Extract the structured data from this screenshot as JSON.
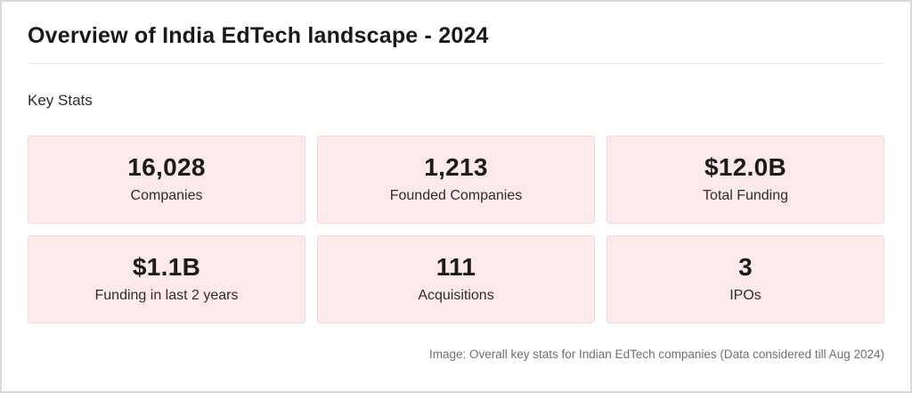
{
  "page": {
    "title": "Overview of India EdTech landscape - 2024",
    "section_label": "Key Stats",
    "caption": "Image: Overall key stats for Indian EdTech companies (Data considered till Aug 2024)"
  },
  "stats": [
    {
      "value": "16,028",
      "label": "Companies"
    },
    {
      "value": "1,213",
      "label": "Founded Companies"
    },
    {
      "value": "$12.0B",
      "label": "Total Funding"
    },
    {
      "value": "$1.1B",
      "label": "Funding in last 2 years"
    },
    {
      "value": "111",
      "label": "Acquisitions"
    },
    {
      "value": "3",
      "label": "IPOs"
    }
  ],
  "colors": {
    "card_background": "#fce9e9",
    "card_border": "#f7d7d7",
    "frame_border": "#d7d7d7",
    "title_text": "#1a1a1a",
    "caption_text": "#6f6f6f",
    "divider": "#e8e8e8"
  },
  "chart_data": {
    "type": "table",
    "title": "Overview of India EdTech landscape - 2024",
    "subtitle": "Key Stats",
    "categories": [
      "Companies",
      "Founded Companies",
      "Total Funding",
      "Funding in last 2 years",
      "Acquisitions",
      "IPOs"
    ],
    "values": [
      16028,
      1213,
      "$12.0B",
      "$1.1B",
      111,
      3
    ],
    "annotations": [
      "Image: Overall key stats for Indian EdTech companies (Data considered till Aug 2024)"
    ],
    "layout": "2 rows x 3 columns stat cards"
  }
}
